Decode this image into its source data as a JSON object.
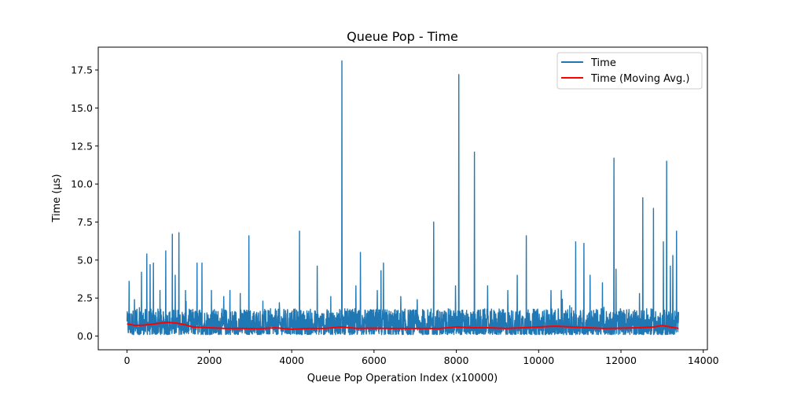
{
  "chart_data": {
    "type": "line",
    "title": "Queue Pop - Time",
    "xlabel": "Queue Pop Operation Index (x10000)",
    "ylabel": "Time (µs)",
    "xlim": [
      -700,
      14100
    ],
    "ylim": [
      -0.9,
      19.0
    ],
    "x_ticks": [
      0,
      2000,
      4000,
      6000,
      8000,
      10000,
      12000,
      14000
    ],
    "x_tick_labels": [
      "0",
      "2000",
      "4000",
      "6000",
      "8000",
      "10000",
      "12000",
      "14000"
    ],
    "y_ticks": [
      0.0,
      2.5,
      5.0,
      7.5,
      10.0,
      12.5,
      15.0,
      17.5
    ],
    "y_tick_labels": [
      "0.0",
      "2.5",
      "5.0",
      "7.5",
      "10.0",
      "12.5",
      "15.0",
      "17.5"
    ],
    "grid": false,
    "legend_position": "top-right",
    "colors": {
      "series_time": "#1f77b4",
      "series_moving_avg": "#ff0000"
    },
    "series": [
      {
        "name": "Time",
        "style": "dense noisy trace between roughly 0.1 and 2.0 µs with isolated spikes",
        "x_range": [
          0,
          13400
        ],
        "baseline_low": 0.1,
        "baseline_high": 1.8,
        "spikes": [
          {
            "x": 50,
            "y": 3.6
          },
          {
            "x": 180,
            "y": 2.4
          },
          {
            "x": 350,
            "y": 4.2
          },
          {
            "x": 480,
            "y": 5.4
          },
          {
            "x": 560,
            "y": 4.7
          },
          {
            "x": 640,
            "y": 4.8
          },
          {
            "x": 800,
            "y": 3.0
          },
          {
            "x": 940,
            "y": 5.6
          },
          {
            "x": 1100,
            "y": 6.7
          },
          {
            "x": 1170,
            "y": 4.0
          },
          {
            "x": 1260,
            "y": 6.8
          },
          {
            "x": 1420,
            "y": 3.0
          },
          {
            "x": 1700,
            "y": 4.8
          },
          {
            "x": 1820,
            "y": 4.8
          },
          {
            "x": 2050,
            "y": 3.0
          },
          {
            "x": 2350,
            "y": 2.6
          },
          {
            "x": 2500,
            "y": 3.0
          },
          {
            "x": 2750,
            "y": 2.8
          },
          {
            "x": 2960,
            "y": 6.6
          },
          {
            "x": 3300,
            "y": 2.3
          },
          {
            "x": 3700,
            "y": 2.2
          },
          {
            "x": 4190,
            "y": 6.9
          },
          {
            "x": 4620,
            "y": 4.6
          },
          {
            "x": 4950,
            "y": 2.6
          },
          {
            "x": 5220,
            "y": 18.1
          },
          {
            "x": 5560,
            "y": 3.3
          },
          {
            "x": 5670,
            "y": 5.5
          },
          {
            "x": 6080,
            "y": 3.0
          },
          {
            "x": 6170,
            "y": 4.3
          },
          {
            "x": 6230,
            "y": 4.8
          },
          {
            "x": 6650,
            "y": 2.6
          },
          {
            "x": 7050,
            "y": 2.4
          },
          {
            "x": 7450,
            "y": 7.5
          },
          {
            "x": 7980,
            "y": 3.3
          },
          {
            "x": 8060,
            "y": 17.2
          },
          {
            "x": 8440,
            "y": 12.1
          },
          {
            "x": 8760,
            "y": 3.3
          },
          {
            "x": 9250,
            "y": 3.0
          },
          {
            "x": 9480,
            "y": 4.0
          },
          {
            "x": 9700,
            "y": 6.6
          },
          {
            "x": 10300,
            "y": 3.0
          },
          {
            "x": 10550,
            "y": 3.0
          },
          {
            "x": 10900,
            "y": 6.2
          },
          {
            "x": 11100,
            "y": 6.1
          },
          {
            "x": 11250,
            "y": 4.0
          },
          {
            "x": 11550,
            "y": 3.5
          },
          {
            "x": 11830,
            "y": 11.7
          },
          {
            "x": 11880,
            "y": 4.4
          },
          {
            "x": 12450,
            "y": 2.8
          },
          {
            "x": 12530,
            "y": 9.1
          },
          {
            "x": 12790,
            "y": 8.4
          },
          {
            "x": 13030,
            "y": 6.2
          },
          {
            "x": 13110,
            "y": 11.5
          },
          {
            "x": 13200,
            "y": 4.6
          },
          {
            "x": 13260,
            "y": 5.3
          },
          {
            "x": 13350,
            "y": 6.9
          }
        ]
      },
      {
        "name": "Time (Moving Avg.)",
        "x": [
          0,
          200,
          400,
          600,
          800,
          1000,
          1200,
          1400,
          1600,
          2000,
          2400,
          2800,
          3200,
          3600,
          4000,
          4400,
          4800,
          5200,
          5600,
          6000,
          6400,
          6800,
          7200,
          7600,
          8000,
          8400,
          8800,
          9200,
          9600,
          10000,
          10400,
          10800,
          11200,
          11600,
          12000,
          12400,
          12800,
          13000,
          13200,
          13400
        ],
        "values": [
          0.8,
          0.7,
          0.72,
          0.78,
          0.85,
          0.9,
          0.85,
          0.75,
          0.6,
          0.55,
          0.5,
          0.5,
          0.48,
          0.55,
          0.45,
          0.5,
          0.5,
          0.6,
          0.5,
          0.52,
          0.5,
          0.5,
          0.5,
          0.5,
          0.6,
          0.55,
          0.55,
          0.5,
          0.55,
          0.6,
          0.65,
          0.6,
          0.55,
          0.5,
          0.52,
          0.55,
          0.6,
          0.7,
          0.6,
          0.5
        ]
      }
    ]
  }
}
